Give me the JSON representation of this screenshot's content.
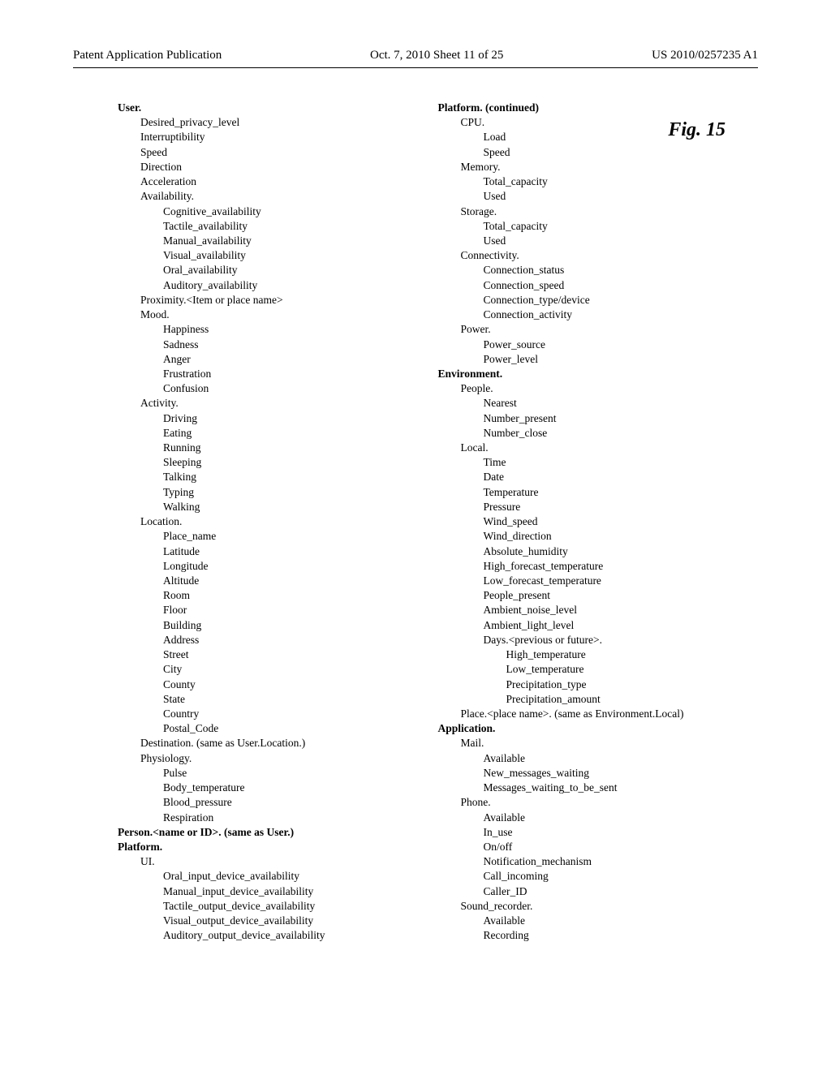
{
  "header": {
    "left": "Patent Application Publication",
    "center": "Oct. 7, 2010   Sheet 11 of 25",
    "right": "US 2010/0257235 A1"
  },
  "figure_label": "Fig. 15",
  "left_col": [
    {
      "t": "User.",
      "l": 0,
      "b": true
    },
    {
      "t": "Desired_privacy_level",
      "l": 1
    },
    {
      "t": "Interruptibility",
      "l": 1
    },
    {
      "t": "Speed",
      "l": 1
    },
    {
      "t": "Direction",
      "l": 1
    },
    {
      "t": "Acceleration",
      "l": 1
    },
    {
      "t": "Availability.",
      "l": 1
    },
    {
      "t": "Cognitive_availability",
      "l": 2
    },
    {
      "t": "Tactile_availability",
      "l": 2
    },
    {
      "t": "Manual_availability",
      "l": 2
    },
    {
      "t": "Visual_availability",
      "l": 2
    },
    {
      "t": "Oral_availability",
      "l": 2
    },
    {
      "t": "Auditory_availability",
      "l": 2
    },
    {
      "t": "Proximity.<Item or place name>",
      "l": 1
    },
    {
      "t": "Mood.",
      "l": 1
    },
    {
      "t": "Happiness",
      "l": 2
    },
    {
      "t": "Sadness",
      "l": 2
    },
    {
      "t": "Anger",
      "l": 2
    },
    {
      "t": "Frustration",
      "l": 2
    },
    {
      "t": "Confusion",
      "l": 2
    },
    {
      "t": "Activity.",
      "l": 1
    },
    {
      "t": "Driving",
      "l": 2
    },
    {
      "t": "Eating",
      "l": 2
    },
    {
      "t": "Running",
      "l": 2
    },
    {
      "t": "Sleeping",
      "l": 2
    },
    {
      "t": "Talking",
      "l": 2
    },
    {
      "t": "Typing",
      "l": 2
    },
    {
      "t": "Walking",
      "l": 2
    },
    {
      "t": "Location.",
      "l": 1
    },
    {
      "t": "Place_name",
      "l": 2
    },
    {
      "t": "Latitude",
      "l": 2
    },
    {
      "t": "Longitude",
      "l": 2
    },
    {
      "t": "Altitude",
      "l": 2
    },
    {
      "t": "Room",
      "l": 2
    },
    {
      "t": "Floor",
      "l": 2
    },
    {
      "t": "Building",
      "l": 2
    },
    {
      "t": "Address",
      "l": 2
    },
    {
      "t": "Street",
      "l": 2
    },
    {
      "t": "City",
      "l": 2
    },
    {
      "t": "County",
      "l": 2
    },
    {
      "t": "State",
      "l": 2
    },
    {
      "t": "Country",
      "l": 2
    },
    {
      "t": "Postal_Code",
      "l": 2
    },
    {
      "t": "Destination. (same as User.Location.)",
      "l": 1
    },
    {
      "t": "Physiology.",
      "l": 1
    },
    {
      "t": "Pulse",
      "l": 2
    },
    {
      "t": "Body_temperature",
      "l": 2
    },
    {
      "t": "Blood_pressure",
      "l": 2
    },
    {
      "t": "Respiration",
      "l": 2
    },
    {
      "t": "Person.<name or ID>. (same as User.)",
      "l": 0,
      "b": true
    },
    {
      "t": "Platform.",
      "l": 0,
      "b": true
    },
    {
      "t": "UI.",
      "l": 1
    },
    {
      "t": "Oral_input_device_availability",
      "l": 2
    },
    {
      "t": "Manual_input_device_availability",
      "l": 2
    },
    {
      "t": "Tactile_output_device_availability",
      "l": 2
    },
    {
      "t": "Visual_output_device_availability",
      "l": 2
    },
    {
      "t": "Auditory_output_device_availability",
      "l": 2
    }
  ],
  "right_col": [
    {
      "t": "Platform. (continued)",
      "l": 0,
      "b": true
    },
    {
      "t": "CPU.",
      "l": 1
    },
    {
      "t": "Load",
      "l": 2
    },
    {
      "t": "Speed",
      "l": 2
    },
    {
      "t": "Memory.",
      "l": 1
    },
    {
      "t": "Total_capacity",
      "l": 2
    },
    {
      "t": "Used",
      "l": 2
    },
    {
      "t": "Storage.",
      "l": 1
    },
    {
      "t": "Total_capacity",
      "l": 2
    },
    {
      "t": "Used",
      "l": 2
    },
    {
      "t": "Connectivity.",
      "l": 1
    },
    {
      "t": "Connection_status",
      "l": 2
    },
    {
      "t": "Connection_speed",
      "l": 2
    },
    {
      "t": "Connection_type/device",
      "l": 2
    },
    {
      "t": "Connection_activity",
      "l": 2
    },
    {
      "t": "Power.",
      "l": 1
    },
    {
      "t": "Power_source",
      "l": 2
    },
    {
      "t": "Power_level",
      "l": 2
    },
    {
      "t": "Environment.",
      "l": 0,
      "b": true
    },
    {
      "t": "People.",
      "l": 1
    },
    {
      "t": "Nearest",
      "l": 2
    },
    {
      "t": "Number_present",
      "l": 2
    },
    {
      "t": "Number_close",
      "l": 2
    },
    {
      "t": "Local.",
      "l": 1
    },
    {
      "t": "Time",
      "l": 2
    },
    {
      "t": "Date",
      "l": 2
    },
    {
      "t": "Temperature",
      "l": 2
    },
    {
      "t": "Pressure",
      "l": 2
    },
    {
      "t": "Wind_speed",
      "l": 2
    },
    {
      "t": "Wind_direction",
      "l": 2
    },
    {
      "t": "Absolute_humidity",
      "l": 2
    },
    {
      "t": "High_forecast_temperature",
      "l": 2
    },
    {
      "t": "Low_forecast_temperature",
      "l": 2
    },
    {
      "t": "People_present",
      "l": 2
    },
    {
      "t": "Ambient_noise_level",
      "l": 2
    },
    {
      "t": "Ambient_light_level",
      "l": 2
    },
    {
      "t": "Days.<previous or future>.",
      "l": 2
    },
    {
      "t": "High_temperature",
      "l": 3
    },
    {
      "t": "Low_temperature",
      "l": 3
    },
    {
      "t": "Precipitation_type",
      "l": 3
    },
    {
      "t": "Precipitation_amount",
      "l": 3
    },
    {
      "t": "Place.<place name>. (same as Environment.Local)",
      "l": 1
    },
    {
      "t": "Application.",
      "l": 0,
      "b": true
    },
    {
      "t": "Mail.",
      "l": 1
    },
    {
      "t": "Available",
      "l": 2
    },
    {
      "t": "New_messages_waiting",
      "l": 2
    },
    {
      "t": "Messages_waiting_to_be_sent",
      "l": 2
    },
    {
      "t": "Phone.",
      "l": 1
    },
    {
      "t": "Available",
      "l": 2
    },
    {
      "t": "In_use",
      "l": 2
    },
    {
      "t": "On/off",
      "l": 2
    },
    {
      "t": "Notification_mechanism",
      "l": 2
    },
    {
      "t": "Call_incoming",
      "l": 2
    },
    {
      "t": "Caller_ID",
      "l": 2
    },
    {
      "t": "Sound_recorder.",
      "l": 1
    },
    {
      "t": "Available",
      "l": 2
    },
    {
      "t": "Recording",
      "l": 2
    }
  ]
}
